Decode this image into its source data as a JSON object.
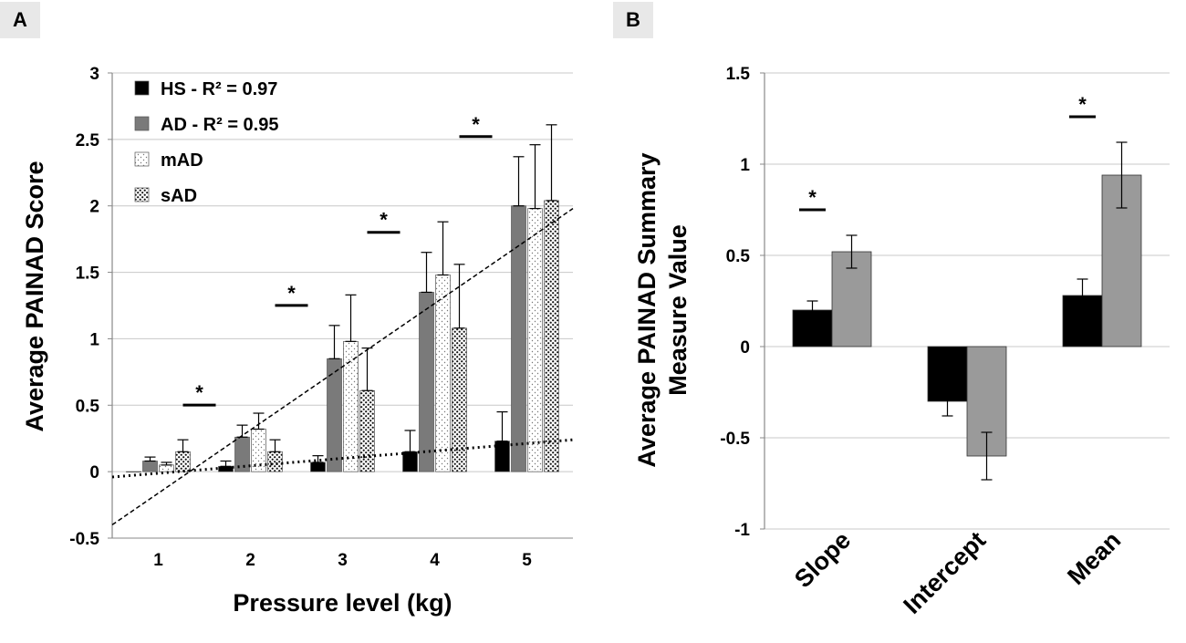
{
  "panels": {
    "a_label": "A",
    "b_label": "B"
  },
  "colors": {
    "hs": "#000000",
    "ad": "#7a7a7a",
    "ad_b": "#9a9a9a",
    "grid": "#c8c8c8"
  },
  "chart_data": [
    {
      "id": "A",
      "type": "bar",
      "title": "",
      "xlabel": "Pressure level (kg)",
      "ylabel": "Average PAINAD Score",
      "ylim": [
        -0.5,
        3
      ],
      "yticks": [
        "-0.5",
        "0",
        "0.5",
        "1",
        "1.5",
        "2",
        "2.5",
        "3"
      ],
      "categories": [
        "1",
        "2",
        "3",
        "4",
        "5"
      ],
      "series": [
        {
          "name": "HS",
          "legend": "HS -  R² = 0.97",
          "pattern": "black",
          "values": [
            0.0,
            0.04,
            0.07,
            0.15,
            0.23
          ],
          "errors": [
            0.0,
            0.04,
            0.05,
            0.16,
            0.22
          ]
        },
        {
          "name": "AD",
          "legend": "AD -  R² = 0.95",
          "pattern": "gray",
          "values": [
            0.08,
            0.26,
            0.85,
            1.35,
            2.0
          ],
          "errors": [
            0.03,
            0.09,
            0.25,
            0.3,
            0.37
          ]
        },
        {
          "name": "mAD",
          "legend": "mAD",
          "pattern": "light-dots",
          "values": [
            0.05,
            0.32,
            0.98,
            1.48,
            1.98
          ],
          "errors": [
            0.02,
            0.12,
            0.35,
            0.4,
            0.48
          ]
        },
        {
          "name": "sAD",
          "legend": "sAD",
          "pattern": "dense-dots",
          "values": [
            0.15,
            0.15,
            0.61,
            1.08,
            2.04
          ],
          "errors": [
            0.09,
            0.09,
            0.32,
            0.48,
            0.57
          ]
        }
      ],
      "trendlines": [
        {
          "name": "AD",
          "style": "dashed",
          "from": [
            0.5,
            -0.4
          ],
          "to": [
            5.5,
            1.98
          ]
        },
        {
          "name": "HS",
          "style": "dotted",
          "from": [
            0.5,
            -0.04
          ],
          "to": [
            5.5,
            0.24
          ]
        }
      ],
      "significance": {
        "symbol": "*",
        "categories": [
          "2",
          "3",
          "4",
          "5"
        ]
      },
      "legend_position": "top-left"
    },
    {
      "id": "B",
      "type": "bar",
      "title": "",
      "xlabel": "",
      "ylabel_line1": "Average PAINAD Summary",
      "ylabel_line2": "Measure Value",
      "ylim": [
        -1,
        1.5
      ],
      "yticks": [
        "-1",
        "-0.5",
        "0",
        "0.5",
        "1",
        "1.5"
      ],
      "categories": [
        "Slope",
        "Intercept",
        "Mean"
      ],
      "series": [
        {
          "name": "HS",
          "values": [
            0.2,
            -0.3,
            0.28
          ],
          "errors": [
            0.05,
            0.08,
            0.09
          ]
        },
        {
          "name": "AD",
          "values": [
            0.52,
            -0.6,
            0.94
          ],
          "errors": [
            0.09,
            0.13,
            0.18
          ]
        }
      ],
      "significance": {
        "symbol": "*",
        "categories": [
          "Slope",
          "Mean"
        ]
      }
    }
  ]
}
